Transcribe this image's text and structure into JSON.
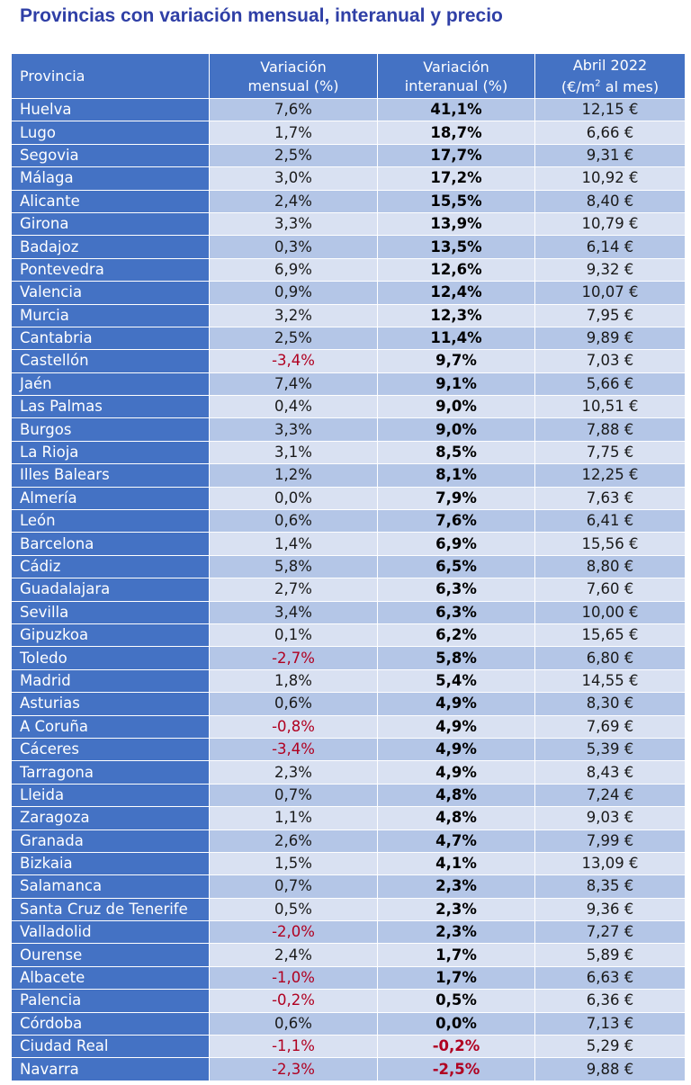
{
  "title": "Provincias con variación mensual, interanual y precio",
  "headers": {
    "provincia": "Provincia",
    "mensual_l1": "Variación",
    "mensual_l2": "mensual (%)",
    "interanual_l1": "Variación",
    "interanual_l2": "interanual (%)",
    "precio_l1": "Abril 2022",
    "precio_l2_pre": "(€/m",
    "precio_l2_sup": "2",
    "precio_l2_post": " al mes)"
  },
  "colors": {
    "title": "#2f3fa6",
    "header_bg": "#4472c4",
    "row_dark": "#b4c6e7",
    "row_light": "#d9e1f2",
    "negative": "#b00020"
  },
  "chart_data": {
    "type": "table",
    "title": "Provincias con variación mensual, interanual y precio",
    "columns": [
      "Provincia",
      "Variación mensual (%)",
      "Variación interanual (%)",
      "Abril 2022 (€/m2 al mes)"
    ],
    "rows": [
      {
        "provincia": "Huelva",
        "mensual": "7,6%",
        "interanual": "41,1%",
        "precio": "12,15 €"
      },
      {
        "provincia": "Lugo",
        "mensual": "1,7%",
        "interanual": "18,7%",
        "precio": "6,66 €"
      },
      {
        "provincia": "Segovia",
        "mensual": "2,5%",
        "interanual": "17,7%",
        "precio": "9,31 €"
      },
      {
        "provincia": "Málaga",
        "mensual": "3,0%",
        "interanual": "17,2%",
        "precio": "10,92 €"
      },
      {
        "provincia": "Alicante",
        "mensual": "2,4%",
        "interanual": "15,5%",
        "precio": "8,40 €"
      },
      {
        "provincia": "Girona",
        "mensual": "3,3%",
        "interanual": "13,9%",
        "precio": "10,79 €"
      },
      {
        "provincia": "Badajoz",
        "mensual": "0,3%",
        "interanual": "13,5%",
        "precio": "6,14 €"
      },
      {
        "provincia": "Pontevedra",
        "mensual": "6,9%",
        "interanual": "12,6%",
        "precio": "9,32 €"
      },
      {
        "provincia": "Valencia",
        "mensual": "0,9%",
        "interanual": "12,4%",
        "precio": "10,07 €"
      },
      {
        "provincia": "Murcia",
        "mensual": "3,2%",
        "interanual": "12,3%",
        "precio": "7,95 €"
      },
      {
        "provincia": "Cantabria",
        "mensual": "2,5%",
        "interanual": "11,4%",
        "precio": "9,89 €"
      },
      {
        "provincia": "Castellón",
        "mensual": "-3,4%",
        "interanual": "9,7%",
        "precio": "7,03 €"
      },
      {
        "provincia": "Jaén",
        "mensual": "7,4%",
        "interanual": "9,1%",
        "precio": "5,66 €"
      },
      {
        "provincia": "Las Palmas",
        "mensual": "0,4%",
        "interanual": "9,0%",
        "precio": "10,51 €"
      },
      {
        "provincia": "Burgos",
        "mensual": "3,3%",
        "interanual": "9,0%",
        "precio": "7,88 €"
      },
      {
        "provincia": "La Rioja",
        "mensual": "3,1%",
        "interanual": "8,5%",
        "precio": "7,75 €"
      },
      {
        "provincia": "Illes Balears",
        "mensual": "1,2%",
        "interanual": "8,1%",
        "precio": "12,25 €"
      },
      {
        "provincia": "Almería",
        "mensual": "0,0%",
        "interanual": "7,9%",
        "precio": "7,63 €"
      },
      {
        "provincia": "León",
        "mensual": "0,6%",
        "interanual": "7,6%",
        "precio": "6,41 €"
      },
      {
        "provincia": "Barcelona",
        "mensual": "1,4%",
        "interanual": "6,9%",
        "precio": "15,56 €"
      },
      {
        "provincia": "Cádiz",
        "mensual": "5,8%",
        "interanual": "6,5%",
        "precio": "8,80 €"
      },
      {
        "provincia": "Guadalajara",
        "mensual": "2,7%",
        "interanual": "6,3%",
        "precio": "7,60 €"
      },
      {
        "provincia": "Sevilla",
        "mensual": "3,4%",
        "interanual": "6,3%",
        "precio": "10,00 €"
      },
      {
        "provincia": "Gipuzkoa",
        "mensual": "0,1%",
        "interanual": "6,2%",
        "precio": "15,65 €"
      },
      {
        "provincia": "Toledo",
        "mensual": "-2,7%",
        "interanual": "5,8%",
        "precio": "6,80 €"
      },
      {
        "provincia": "Madrid",
        "mensual": "1,8%",
        "interanual": "5,4%",
        "precio": "14,55 €"
      },
      {
        "provincia": "Asturias",
        "mensual": "0,6%",
        "interanual": "4,9%",
        "precio": "8,30 €"
      },
      {
        "provincia": "A Coruña",
        "mensual": "-0,8%",
        "interanual": "4,9%",
        "precio": "7,69 €"
      },
      {
        "provincia": "Cáceres",
        "mensual": "-3,4%",
        "interanual": "4,9%",
        "precio": "5,39 €"
      },
      {
        "provincia": "Tarragona",
        "mensual": "2,3%",
        "interanual": "4,9%",
        "precio": "8,43 €"
      },
      {
        "provincia": "Lleida",
        "mensual": "0,7%",
        "interanual": "4,8%",
        "precio": "7,24 €"
      },
      {
        "provincia": "Zaragoza",
        "mensual": "1,1%",
        "interanual": "4,8%",
        "precio": "9,03 €"
      },
      {
        "provincia": "Granada",
        "mensual": "2,6%",
        "interanual": "4,7%",
        "precio": "7,99 €"
      },
      {
        "provincia": "Bizkaia",
        "mensual": "1,5%",
        "interanual": "4,1%",
        "precio": "13,09 €"
      },
      {
        "provincia": "Salamanca",
        "mensual": "0,7%",
        "interanual": "2,3%",
        "precio": "8,35 €"
      },
      {
        "provincia": "Santa Cruz de Tenerife",
        "mensual": "0,5%",
        "interanual": "2,3%",
        "precio": "9,36 €"
      },
      {
        "provincia": "Valladolid",
        "mensual": "-2,0%",
        "interanual": "2,3%",
        "precio": "7,27 €"
      },
      {
        "provincia": "Ourense",
        "mensual": "2,4%",
        "interanual": "1,7%",
        "precio": "5,89 €"
      },
      {
        "provincia": "Albacete",
        "mensual": "-1,0%",
        "interanual": "1,7%",
        "precio": "6,63 €"
      },
      {
        "provincia": "Palencia",
        "mensual": "-0,2%",
        "interanual": "0,5%",
        "precio": "6,36 €"
      },
      {
        "provincia": "Córdoba",
        "mensual": "0,6%",
        "interanual": "0,0%",
        "precio": "7,13 €"
      },
      {
        "provincia": "Ciudad Real",
        "mensual": "-1,1%",
        "interanual": "-0,2%",
        "precio": "5,29 €"
      },
      {
        "provincia": "Navarra",
        "mensual": "-2,3%",
        "interanual": "-2,5%",
        "precio": "9,88 €"
      }
    ]
  }
}
